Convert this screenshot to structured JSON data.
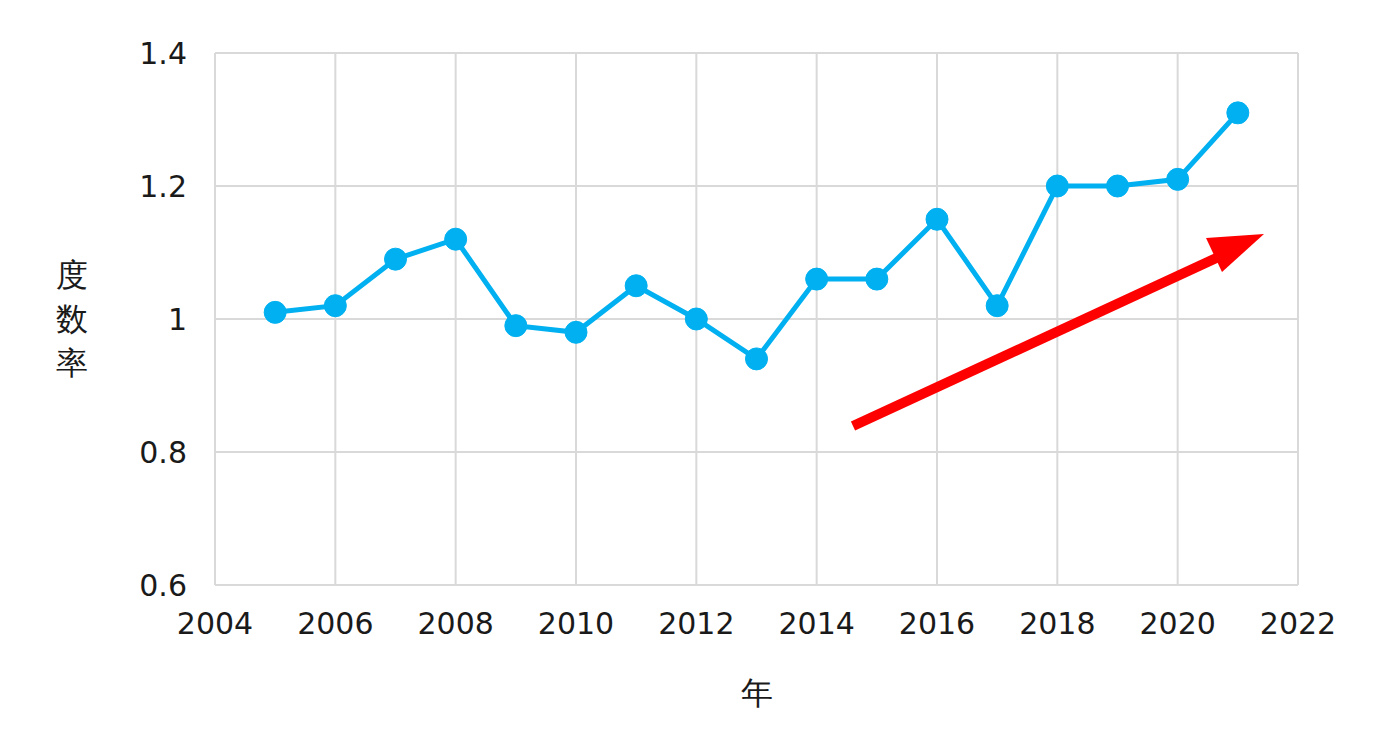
{
  "chart_data": {
    "type": "line",
    "x_label": "年",
    "y_label": "度数率",
    "x": [
      2005,
      2006,
      2007,
      2008,
      2009,
      2010,
      2011,
      2012,
      2013,
      2014,
      2015,
      2016,
      2017,
      2018,
      2019,
      2020,
      2021
    ],
    "values": [
      1.01,
      1.02,
      1.09,
      1.12,
      0.99,
      0.98,
      1.05,
      1.0,
      0.94,
      1.06,
      1.06,
      1.15,
      1.02,
      1.2,
      1.2,
      1.21,
      1.31
    ],
    "color": "#00b0f0",
    "marker": "circle",
    "line_style": "solid",
    "xlim": [
      2004,
      2022
    ],
    "xticks": [
      2004,
      2006,
      2008,
      2010,
      2012,
      2014,
      2016,
      2018,
      2020,
      2022
    ],
    "ylim": [
      0.6,
      1.4
    ],
    "yticks": [
      0.6,
      0.8,
      1,
      1.2,
      1.4
    ],
    "grid": true
  }
}
